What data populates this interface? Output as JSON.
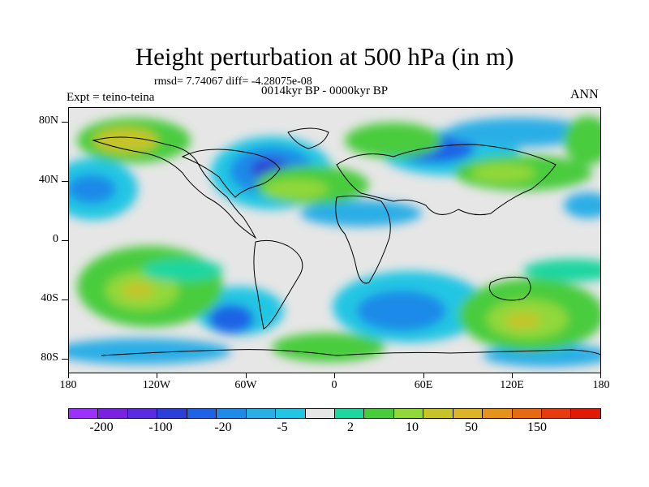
{
  "title": "Height perturbation at 500 hPa (in m)",
  "stats": "rmsd= 7.74067 diff= -4.28075e-08",
  "subtitle": "0014kyr BP - 0000kyr BP",
  "experiment": "Expt = teino-teina",
  "season": "ANN",
  "map": {
    "projection": "cylindrical equidistant",
    "lon_range": [
      -180,
      180
    ],
    "lat_range": [
      -90,
      90
    ],
    "lat_labels": [
      "80N",
      "40N",
      "0",
      "40S",
      "80S"
    ],
    "lon_labels": [
      "180",
      "120W",
      "60W",
      "0",
      "60E",
      "120E",
      "180"
    ],
    "coastlines": true
  },
  "colorbar": {
    "colors": [
      "#9b30ff",
      "#7a22e0",
      "#5a2be0",
      "#2d3fd6",
      "#1e63e6",
      "#1f8ae8",
      "#2aaee6",
      "#22c6e3",
      "#e6e6e6",
      "#1fd6a0",
      "#48cc3c",
      "#92d83a",
      "#c5c42a",
      "#dcb426",
      "#e6931c",
      "#e66a14",
      "#e63b0e",
      "#e01a06"
    ],
    "labels": [
      "-200",
      "-100",
      "-20",
      "-5",
      "2",
      "10",
      "50",
      "150"
    ]
  }
}
